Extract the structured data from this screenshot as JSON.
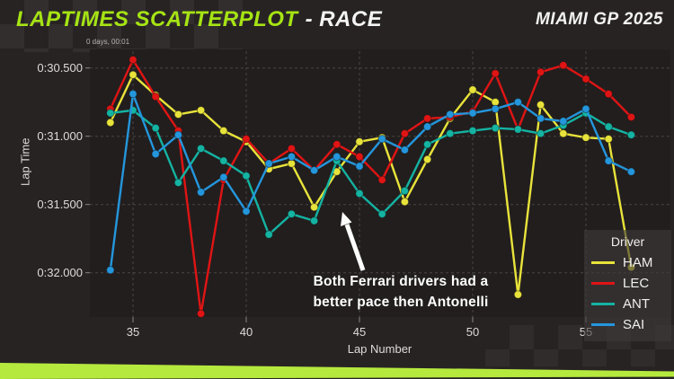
{
  "header": {
    "title_green": "LAPTIMES SCATTERPLOT",
    "title_white": "- RACE",
    "event": "MIAMI GP 2025"
  },
  "axis_offset_label": "0 days, 00:01",
  "annotation": {
    "line1": "Both Ferrari drivers had a",
    "line2": "better pace then Antonelli"
  },
  "colors": {
    "accent_green": "#a6e414",
    "stripe_green": "#b5e93e",
    "page_bg": "#282323",
    "plot_bg": "#221e1e",
    "gridline": "#4a4444",
    "tick_text": "#dedbdb"
  },
  "chart_data": {
    "type": "scatter",
    "mode": "lines+markers",
    "title": "",
    "xlabel": "Lap Number",
    "ylabel": "Lap Time",
    "legend_title": "Driver",
    "legend_position": "bottom-right",
    "grid": "dashed",
    "x_ticks": [
      35,
      40,
      45,
      50,
      55
    ],
    "y_ticks": [
      {
        "label": "0:30.500",
        "value": 30.5
      },
      {
        "label": "0:31.000",
        "value": 31.0
      },
      {
        "label": "0:31.500",
        "value": 31.5
      },
      {
        "label": "0:32.000",
        "value": 32.0
      }
    ],
    "xlim": [
      33.1,
      58.7
    ],
    "ylim_top_to_bottom": [
      30.36,
      32.32
    ],
    "laps": [
      34,
      35,
      36,
      37,
      38,
      39,
      40,
      41,
      42,
      43,
      44,
      45,
      46,
      47,
      48,
      49,
      50,
      51,
      52,
      53,
      54,
      55,
      56,
      57
    ],
    "series": [
      {
        "name": "HAM",
        "color": "#e8e33a",
        "values": [
          30.9,
          30.55,
          30.7,
          30.84,
          30.81,
          30.96,
          31.04,
          31.24,
          31.2,
          31.52,
          31.26,
          31.04,
          31.01,
          31.48,
          31.17,
          30.87,
          30.66,
          30.75,
          32.16,
          30.77,
          30.98,
          31.01,
          31.02,
          31.96
        ]
      },
      {
        "name": "LEC",
        "color": "#e01414",
        "values": [
          30.8,
          30.44,
          30.71,
          30.96,
          32.3,
          31.32,
          31.02,
          31.2,
          31.09,
          31.25,
          31.06,
          31.15,
          31.32,
          30.98,
          30.87,
          30.86,
          30.82,
          30.54,
          30.95,
          30.53,
          30.48,
          30.58,
          30.69,
          30.86
        ]
      },
      {
        "name": "ANT",
        "color": "#14b3a2",
        "values": [
          30.83,
          30.81,
          30.94,
          31.34,
          31.09,
          31.18,
          31.29,
          31.72,
          31.57,
          31.62,
          31.18,
          31.42,
          31.57,
          31.4,
          31.06,
          30.98,
          30.96,
          30.94,
          30.95,
          30.98,
          30.92,
          30.83,
          30.93,
          30.99
        ]
      },
      {
        "name": "SAI",
        "color": "#2496dc",
        "values": [
          31.98,
          30.69,
          31.13,
          30.99,
          31.41,
          31.3,
          31.55,
          31.2,
          31.15,
          31.25,
          31.15,
          31.22,
          31.02,
          31.1,
          30.93,
          30.84,
          30.83,
          30.8,
          30.75,
          30.87,
          30.89,
          30.8,
          31.18,
          31.26
        ]
      }
    ]
  }
}
